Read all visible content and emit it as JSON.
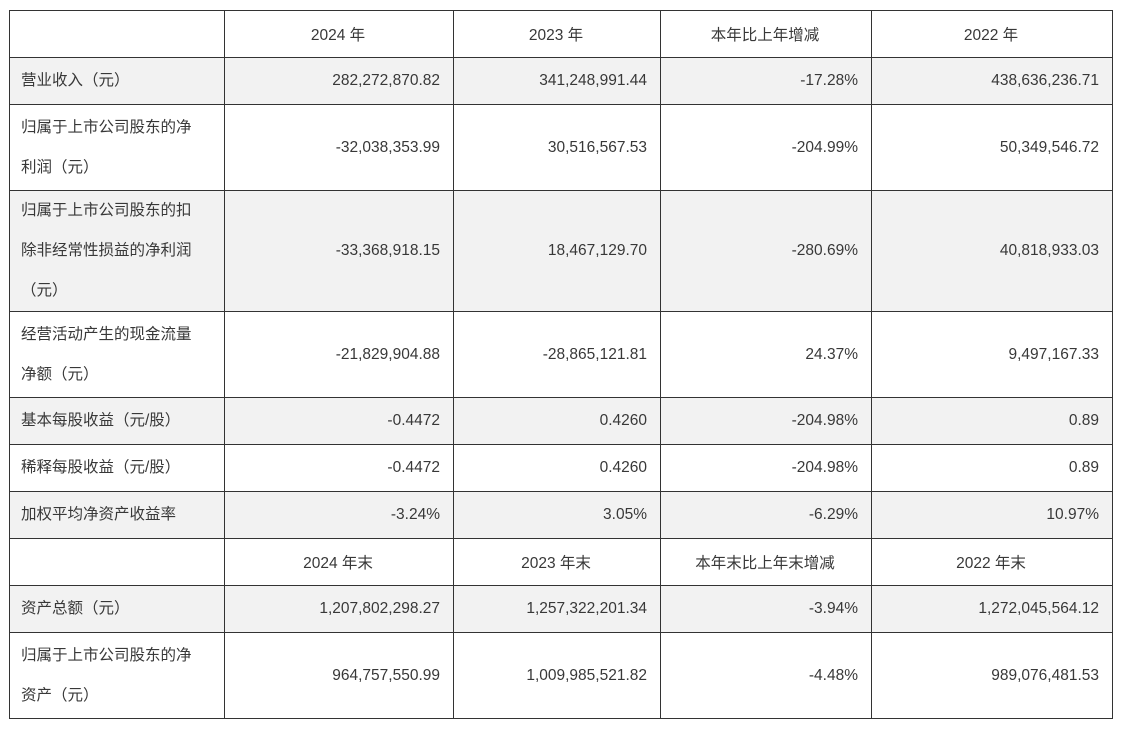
{
  "page": {
    "background_color": "#ffffff",
    "text_color": "#383838",
    "border_color": "#333333",
    "shaded_row_color": "#f2f2f2"
  },
  "table": {
    "rows": [
      {
        "type": "header",
        "cells": [
          "",
          "2024 年",
          "2023 年",
          "本年比上年增减",
          "2022 年"
        ]
      },
      {
        "type": "data",
        "cells": [
          "营业收入（元）",
          "282,272,870.82",
          "341,248,991.44",
          "-17.28%",
          "438,636,236.71"
        ]
      },
      {
        "type": "data",
        "cells": [
          "归属于上市公司股东的净\n利润（元）",
          "-32,038,353.99",
          "30,516,567.53",
          "-204.99%",
          "50,349,546.72"
        ]
      },
      {
        "type": "data",
        "cells": [
          "归属于上市公司股东的扣\n除非经常性损益的净利润\n（元）",
          "-33,368,918.15",
          "18,467,129.70",
          "-280.69%",
          "40,818,933.03"
        ]
      },
      {
        "type": "data",
        "cells": [
          "经营活动产生的现金流量\n净额（元）",
          "-21,829,904.88",
          "-28,865,121.81",
          "24.37%",
          "9,497,167.33"
        ]
      },
      {
        "type": "data",
        "cells": [
          "基本每股收益（元/股）",
          "-0.4472",
          "0.4260",
          "-204.98%",
          "0.89"
        ]
      },
      {
        "type": "data",
        "cells": [
          "稀释每股收益（元/股）",
          "-0.4472",
          "0.4260",
          "-204.98%",
          "0.89"
        ]
      },
      {
        "type": "data",
        "cells": [
          "加权平均净资产收益率",
          "-3.24%",
          "3.05%",
          "-6.29%",
          "10.97%"
        ]
      },
      {
        "type": "header",
        "cells": [
          "",
          "2024 年末",
          "2023 年末",
          "本年末比上年末增减",
          "2022 年末"
        ]
      },
      {
        "type": "data",
        "cells": [
          "资产总额（元）",
          "1,207,802,298.27",
          "1,257,322,201.34",
          "-3.94%",
          "1,272,045,564.12"
        ]
      },
      {
        "type": "data",
        "cells": [
          "归属于上市公司股东的净\n资产（元）",
          "964,757,550.99",
          "1,009,985,521.82",
          "-4.48%",
          "989,076,481.53"
        ]
      }
    ]
  }
}
